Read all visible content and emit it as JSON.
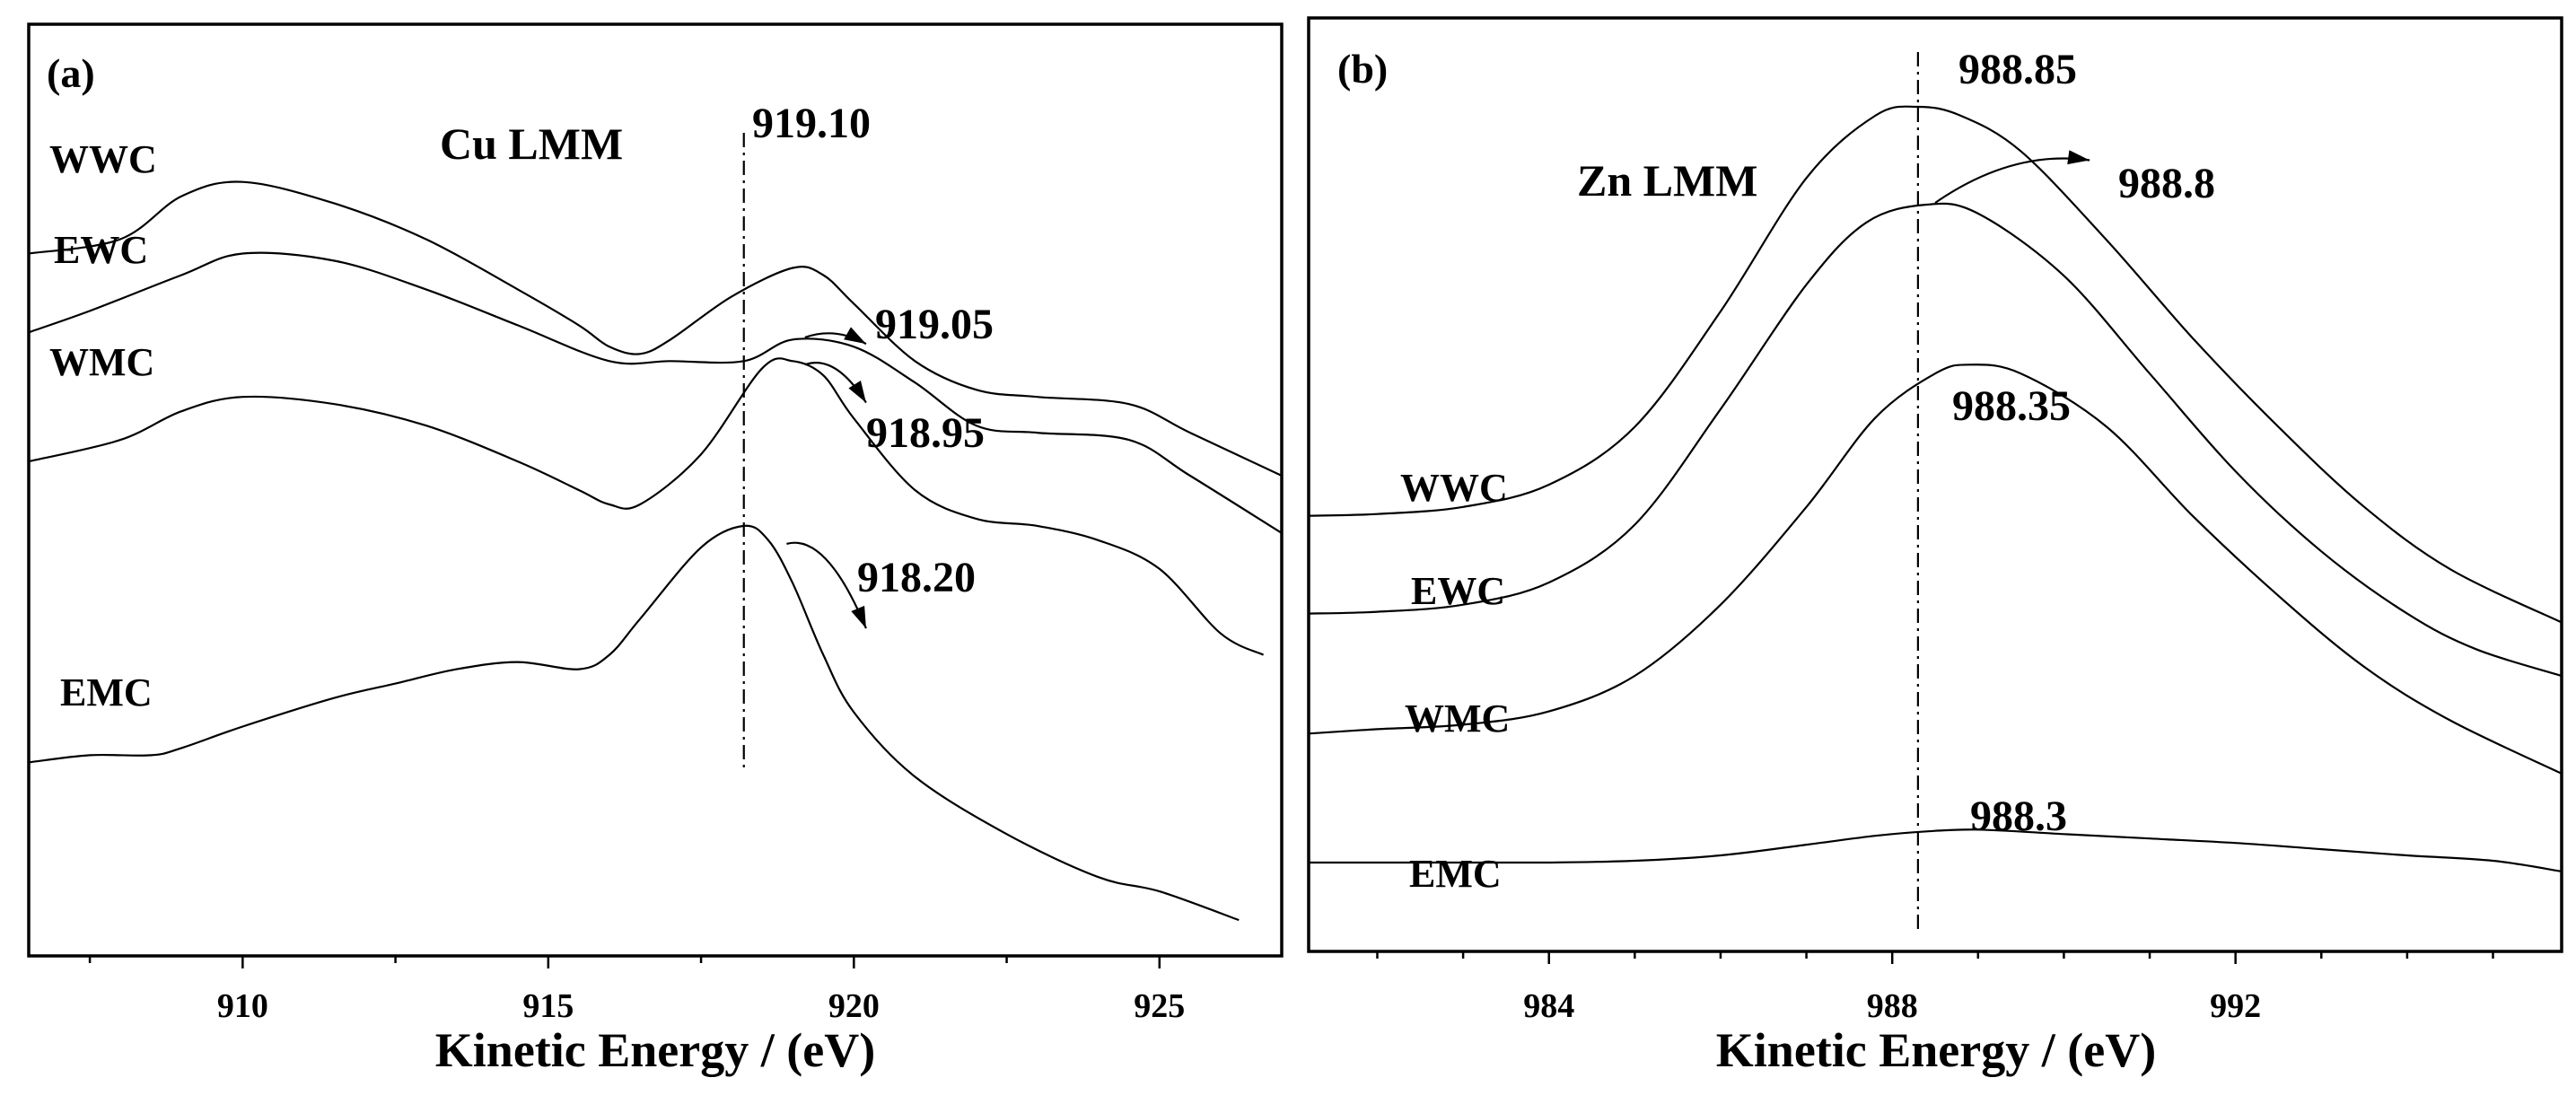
{
  "chart_data": [
    {
      "panel": "(a)",
      "type": "line",
      "annotation": "Cu  LMM",
      "xlabel": "Kinetic  Energy / (eV)",
      "ylabel": "",
      "xlim": [
        906.5,
        927
      ],
      "xticks": [
        910,
        915,
        920,
        925
      ],
      "x_minor_ticks": [
        907.5,
        912.5,
        917.5,
        922.5
      ],
      "reference_line": 918.2,
      "series": [
        {
          "name": "WWC",
          "peak_label": "919.10",
          "points": [
            [
              906.5,
              43
            ],
            [
              908,
              45
            ],
            [
              909,
              51
            ],
            [
              910,
              53
            ],
            [
              911.5,
              50
            ],
            [
              913,
              45
            ],
            [
              914.5,
              38
            ],
            [
              915.5,
              33
            ],
            [
              916,
              30
            ],
            [
              916.5,
              29
            ],
            [
              917,
              31
            ],
            [
              918,
              37
            ],
            [
              919,
              41
            ],
            [
              919.5,
              40
            ],
            [
              920,
              36
            ],
            [
              921,
              28
            ],
            [
              922,
              24
            ],
            [
              923,
              23
            ],
            [
              924.5,
              22
            ],
            [
              925.5,
              18
            ],
            [
              927,
              12
            ]
          ]
        },
        {
          "name": "EWC",
          "peak_label": "919.05",
          "points": [
            [
              906.5,
              32
            ],
            [
              907.5,
              35
            ],
            [
              909,
              40
            ],
            [
              910,
              43
            ],
            [
              911.5,
              42
            ],
            [
              913,
              38
            ],
            [
              914.5,
              33
            ],
            [
              916,
              28
            ],
            [
              917,
              28
            ],
            [
              918.2,
              28
            ],
            [
              919,
              31
            ],
            [
              920,
              30
            ],
            [
              921,
              25
            ],
            [
              922,
              19
            ],
            [
              923,
              18
            ],
            [
              924.5,
              17
            ],
            [
              925.5,
              12
            ],
            [
              927,
              4
            ]
          ]
        },
        {
          "name": "WMC",
          "peak_label": "918.95",
          "points": [
            [
              906.5,
              14
            ],
            [
              908,
              17
            ],
            [
              909,
              21
            ],
            [
              910,
              23
            ],
            [
              911.5,
              22
            ],
            [
              913,
              19
            ],
            [
              914.5,
              14
            ],
            [
              915.5,
              10
            ],
            [
              916,
              8
            ],
            [
              916.5,
              8
            ],
            [
              917.5,
              15
            ],
            [
              918.5,
              27
            ],
            [
              919,
              28
            ],
            [
              919.5,
              26
            ],
            [
              920,
              20
            ],
            [
              921,
              10
            ],
            [
              922,
              6
            ],
            [
              923,
              5
            ],
            [
              924,
              3
            ],
            [
              925,
              -1
            ],
            [
              926,
              -10
            ],
            [
              926.7,
              -13
            ]
          ]
        },
        {
          "name": "EMC",
          "peak_label": "918.20",
          "points": [
            [
              906.5,
              -28
            ],
            [
              907.5,
              -27
            ],
            [
              908.5,
              -27
            ],
            [
              909,
              -26
            ],
            [
              910,
              -23
            ],
            [
              911.5,
              -19
            ],
            [
              912.5,
              -17
            ],
            [
              913.5,
              -15
            ],
            [
              914.5,
              -14
            ],
            [
              915.5,
              -15
            ],
            [
              916,
              -13
            ],
            [
              916.5,
              -8
            ],
            [
              917.5,
              2
            ],
            [
              918.2,
              5
            ],
            [
              918.6,
              3
            ],
            [
              919,
              -3
            ],
            [
              919.5,
              -13
            ],
            [
              920,
              -21
            ],
            [
              921,
              -30
            ],
            [
              922.5,
              -38
            ],
            [
              924,
              -44
            ],
            [
              925,
              -46
            ],
            [
              926.3,
              -50
            ]
          ]
        }
      ],
      "arrows": [
        {
          "series": "EWC",
          "from": [
            919.2,
            31.3
          ],
          "to": [
            920.2,
            30.4
          ]
        },
        {
          "series": "WMC",
          "from": [
            919.2,
            27.5
          ],
          "to": [
            920.2,
            22.2
          ]
        },
        {
          "series": "EMC",
          "from": [
            918.9,
            2.5
          ],
          "to": [
            920.2,
            -9.3
          ]
        }
      ]
    },
    {
      "panel": "(b)",
      "type": "line",
      "annotation": "Zn  LMM",
      "xlabel": "Kinetic  Energy / (eV)",
      "ylabel": "",
      "xlim": [
        981.2,
        995.8
      ],
      "xticks": [
        984,
        988,
        992
      ],
      "x_minor_ticks": [
        982,
        983,
        985,
        986,
        987,
        989,
        990,
        991,
        993,
        994,
        995
      ],
      "reference_line": 988.3,
      "series": [
        {
          "name": "WWC",
          "peak_label": "988.85",
          "points": [
            [
              981.2,
              14
            ],
            [
              982,
              14.2
            ],
            [
              983,
              15
            ],
            [
              984,
              17.5
            ],
            [
              985,
              24
            ],
            [
              986,
              37
            ],
            [
              987,
              52
            ],
            [
              987.8,
              59
            ],
            [
              988.3,
              60
            ],
            [
              988.8,
              59
            ],
            [
              989.5,
              55
            ],
            [
              990.5,
              45
            ],
            [
              991.5,
              34
            ],
            [
              992.5,
              24
            ],
            [
              993.5,
              15
            ],
            [
              994.5,
              8
            ],
            [
              995.8,
              2
            ]
          ]
        },
        {
          "name": "EWC",
          "peak_label": "988.8",
          "points": [
            [
              981.2,
              3
            ],
            [
              982,
              3.2
            ],
            [
              983,
              4
            ],
            [
              984,
              6.5
            ],
            [
              985,
              13
            ],
            [
              986,
              26
            ],
            [
              987,
              40
            ],
            [
              987.7,
              47
            ],
            [
              988.4,
              49
            ],
            [
              989,
              48
            ],
            [
              990,
              41
            ],
            [
              991,
              30
            ],
            [
              992,
              19
            ],
            [
              993,
              10
            ],
            [
              994,
              3
            ],
            [
              994.8,
              -1
            ],
            [
              995.8,
              -4
            ]
          ]
        },
        {
          "name": "WMC",
          "peak_label": "988.35",
          "points": [
            [
              981.2,
              -10.5
            ],
            [
              982,
              -10
            ],
            [
              983,
              -9.5
            ],
            [
              984,
              -8
            ],
            [
              985,
              -4
            ],
            [
              986,
              4
            ],
            [
              987,
              15
            ],
            [
              987.8,
              25
            ],
            [
              988.5,
              30
            ],
            [
              988.9,
              31
            ],
            [
              989.5,
              30
            ],
            [
              990.5,
              24
            ],
            [
              991.5,
              14
            ],
            [
              992.5,
              5
            ],
            [
              993.5,
              -3
            ],
            [
              994.5,
              -9
            ],
            [
              995.8,
              -15
            ]
          ]
        },
        {
          "name": "EMC",
          "peak_label": "988.3",
          "points": [
            [
              981.2,
              -25
            ],
            [
              982,
              -25
            ],
            [
              983,
              -25
            ],
            [
              984,
              -25
            ],
            [
              985,
              -24.8
            ],
            [
              986,
              -24.2
            ],
            [
              987,
              -23
            ],
            [
              987.8,
              -22
            ],
            [
              988.4,
              -21.5
            ],
            [
              989,
              -21.3
            ],
            [
              990,
              -21.8
            ],
            [
              991,
              -22.3
            ],
            [
              992,
              -22.8
            ],
            [
              993,
              -23.5
            ],
            [
              994,
              -24.2
            ],
            [
              995,
              -24.8
            ],
            [
              995.8,
              -26
            ]
          ]
        }
      ],
      "arrows": [
        {
          "series": "EWC",
          "from": [
            988.5,
            49.2
          ],
          "to": [
            990.3,
            54
          ]
        }
      ]
    }
  ]
}
